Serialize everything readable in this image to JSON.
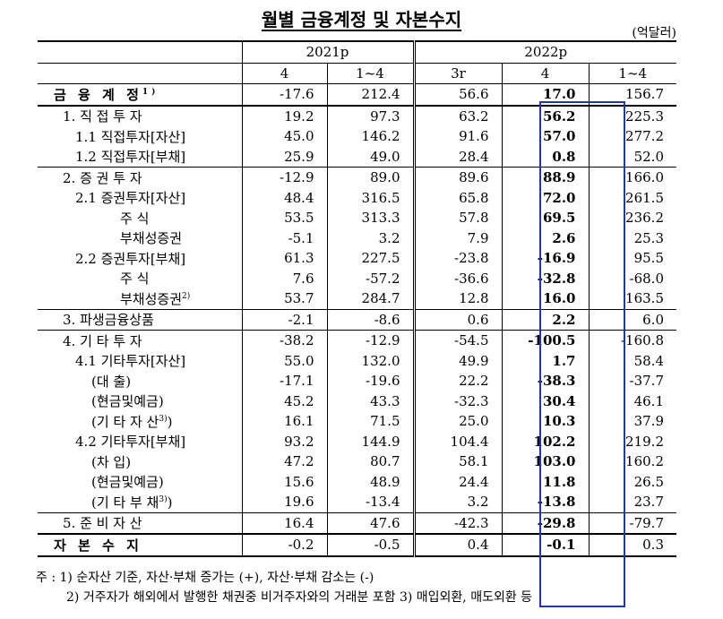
{
  "title": "월별 금융계정 및 자본수지",
  "unit": "(억달러)",
  "header": {
    "groups": [
      "2021p",
      "2022p"
    ],
    "columns": [
      "4",
      "1~4",
      "3r",
      "4",
      "1~4"
    ]
  },
  "rows": [
    {
      "label": "금 융 계 정",
      "sup": "1)",
      "values": [
        "-17.6",
        "212.4",
        "56.6",
        "17.0",
        "156.7"
      ]
    },
    {
      "label": "1. 직 접 투 자",
      "values": [
        "19.2",
        "97.3",
        "63.2",
        "56.2",
        "225.3"
      ]
    },
    {
      "label": "1.1 직접투자[자산]",
      "values": [
        "45.0",
        "146.2",
        "91.6",
        "57.0",
        "277.2"
      ]
    },
    {
      "label": "1.2 직접투자[부채]",
      "values": [
        "25.9",
        "49.0",
        "28.4",
        "0.8",
        "52.0"
      ]
    },
    {
      "label": "2. 증 권 투 자",
      "values": [
        "-12.9",
        "89.0",
        "89.6",
        "88.9",
        "166.0"
      ]
    },
    {
      "label": "2.1 증권투자[자산]",
      "values": [
        "48.4",
        "316.5",
        "65.8",
        "72.0",
        "261.5"
      ]
    },
    {
      "label": "주 식",
      "values": [
        "53.5",
        "313.3",
        "57.8",
        "69.5",
        "236.2"
      ]
    },
    {
      "label": "부채성증권",
      "values": [
        "-5.1",
        "3.2",
        "7.9",
        "2.6",
        "25.3"
      ]
    },
    {
      "label": "2.2 증권투자[부채]",
      "values": [
        "61.3",
        "227.5",
        "-23.8",
        "-16.9",
        "95.5"
      ]
    },
    {
      "label": "주 식",
      "values": [
        "7.6",
        "-57.2",
        "-36.6",
        "-32.8",
        "-68.0"
      ]
    },
    {
      "label": "부채성증권",
      "sup": "2)",
      "values": [
        "53.7",
        "284.7",
        "12.8",
        "16.0",
        "163.5"
      ]
    },
    {
      "label": "3. 파생금융상품",
      "values": [
        "-2.1",
        "-8.6",
        "0.6",
        "2.2",
        "6.0"
      ]
    },
    {
      "label": "4. 기 타 투 자",
      "values": [
        "-38.2",
        "-12.9",
        "-54.5",
        "-100.5",
        "-160.8"
      ]
    },
    {
      "label": "4.1 기타투자[자산]",
      "values": [
        "55.0",
        "132.0",
        "49.9",
        "1.7",
        "58.4"
      ]
    },
    {
      "label": "(대 출)",
      "values": [
        "-17.1",
        "-19.6",
        "22.2",
        "-38.3",
        "-37.7"
      ]
    },
    {
      "label": "(현금및예금)",
      "values": [
        "45.2",
        "43.3",
        "-32.3",
        "30.4",
        "46.1"
      ]
    },
    {
      "label": "(기 타 자 산",
      "sup": "3)",
      "tail": ")",
      "values": [
        "16.1",
        "71.5",
        "25.0",
        "10.3",
        "37.9"
      ]
    },
    {
      "label": "4.2 기타투자[부채]",
      "values": [
        "93.2",
        "144.9",
        "104.4",
        "102.2",
        "219.2"
      ]
    },
    {
      "label": "(차 입)",
      "values": [
        "47.2",
        "80.7",
        "58.1",
        "103.0",
        "160.2"
      ]
    },
    {
      "label": "(현금및예금)",
      "values": [
        "15.6",
        "48.9",
        "24.4",
        "11.8",
        "26.5"
      ]
    },
    {
      "label": "(기 타 부 채",
      "sup": "3)",
      "tail": ")",
      "values": [
        "19.6",
        "-13.4",
        "3.2",
        "-13.8",
        "23.7"
      ]
    },
    {
      "label": "5. 준 비 자 산",
      "values": [
        "16.4",
        "47.6",
        "-42.3",
        "-29.8",
        "-79.7"
      ]
    },
    {
      "label": "자 본 수 지",
      "values": [
        "-0.2",
        "-0.5",
        "0.4",
        "-0.1",
        "0.3"
      ]
    }
  ],
  "notes": [
    "주 : 1) 순자산 기준, 자산·부채 증가는 (+), 자산·부채 감소는 (-)",
    "2) 거주자가 해외에서 발행한 채권중 비거주자와의 거래분 포함  3) 매입외환, 매도외환 등"
  ]
}
